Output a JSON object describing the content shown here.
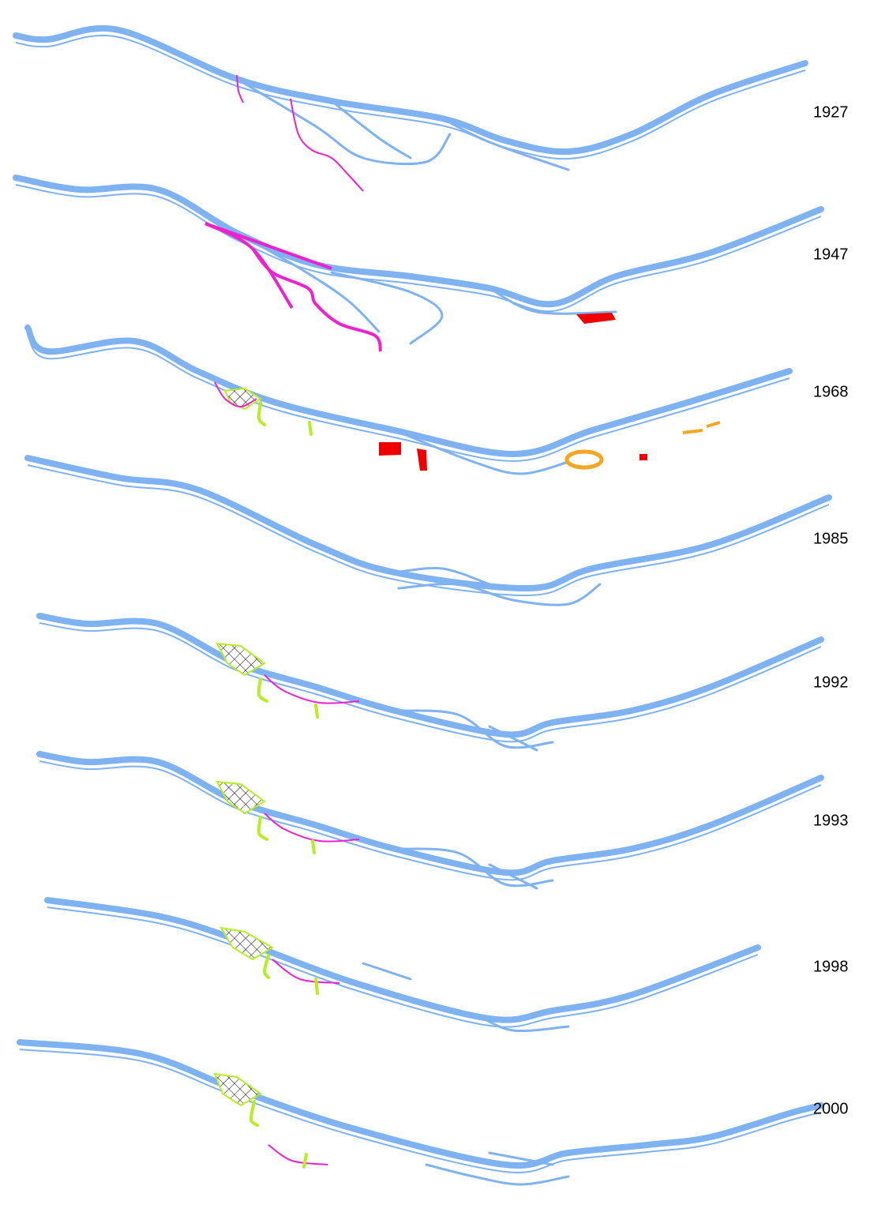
{
  "panels": [
    {
      "year": "1927"
    },
    {
      "year": "1947"
    },
    {
      "year": "1968"
    },
    {
      "year": "1985"
    },
    {
      "year": "1992"
    },
    {
      "year": "1993"
    },
    {
      "year": "1998"
    },
    {
      "year": "2000"
    }
  ]
}
